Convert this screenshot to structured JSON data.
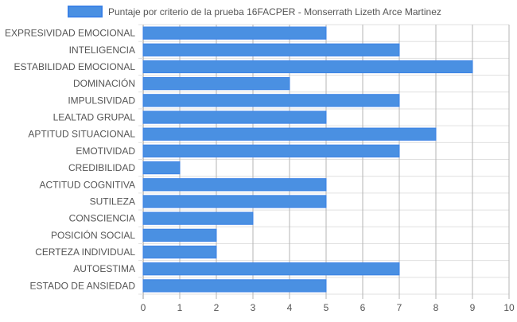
{
  "chart_data": {
    "type": "bar",
    "orientation": "horizontal",
    "categories": [
      "EXPRESIVIDAD EMOCIONAL",
      "INTELIGENCIA",
      "ESTABILIDAD EMOCIONAL",
      "DOMINACIÓN",
      "IMPULSIVIDAD",
      "LEALTAD GRUPAL",
      "APTITUD SITUACIONAL",
      "EMOTIVIDAD",
      "CREDIBILIDAD",
      "ACTITUD COGNITIVA",
      "SUTILEZA",
      "CONSCIENCIA",
      "POSICIÓN SOCIAL",
      "CERTEZA INDIVIDUAL",
      "AUTOESTIMA",
      "ESTADO DE ANSIEDAD"
    ],
    "series": [
      {
        "name": "Puntaje por criterio de la prueba 16FACPER - Monserrath Lizeth Arce Martinez",
        "values": [
          5,
          7,
          9,
          4,
          7,
          5,
          8,
          7,
          1,
          5,
          5,
          3,
          2,
          2,
          7,
          5
        ],
        "color": "#4a90e2"
      }
    ],
    "xlim": [
      0,
      10
    ],
    "xticks": [
      "0",
      "1",
      "2",
      "3",
      "4",
      "5",
      "6",
      "7",
      "8",
      "9",
      "10"
    ],
    "grid": true,
    "legend_position": "top"
  },
  "colors": {
    "bar_fill": "#4a90e2",
    "bar_stroke": "#3b82e6",
    "grid": "#e0e0e0",
    "grid_major": "#b5b5b5",
    "text": "#555555"
  }
}
